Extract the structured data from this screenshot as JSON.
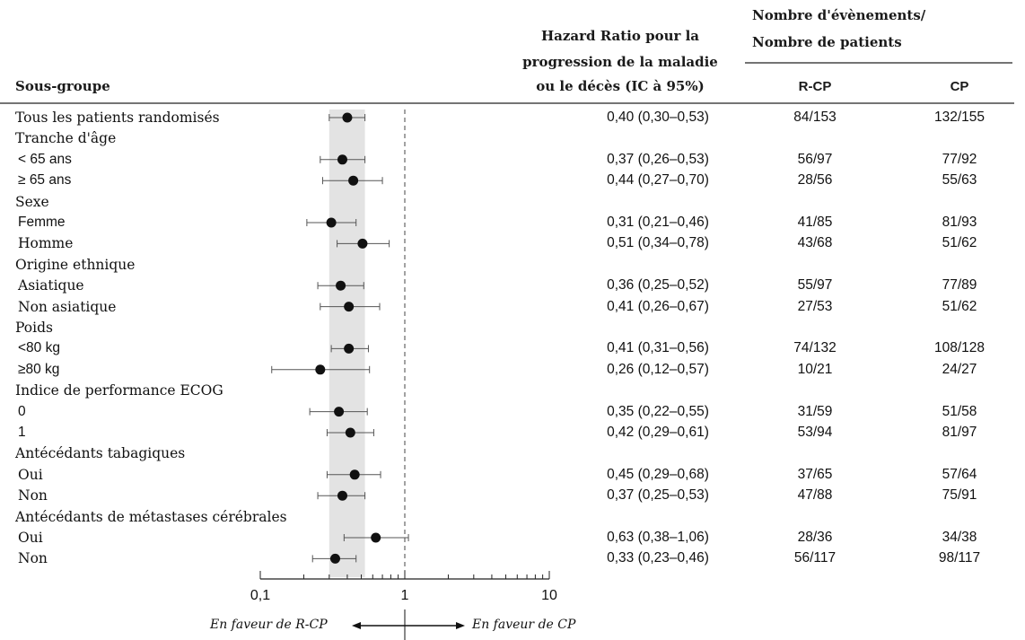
{
  "headers": {
    "subgroup": "Sous-groupe",
    "hr_line1": "Hazard Ratio pour la",
    "hr_line2": "progression de la maladie",
    "hr_line3": "ou le décès (IC à 95%)",
    "events_line1": "Nombre d'évènements/",
    "events_line2": "Nombre de patients",
    "col_rcp": "R-CP",
    "col_cp": "CP"
  },
  "footer": {
    "favor_left": "En faveur de R-CP",
    "favor_right": "En faveur de CP"
  },
  "chart_data": {
    "type": "forest",
    "x_scale": "log",
    "xlim": [
      0.1,
      10
    ],
    "x_ticks": [
      "0,1",
      "1",
      "10"
    ],
    "reference_line": 1,
    "shaded_band": [
      0.3,
      0.53
    ],
    "rows": [
      {
        "label": "Tous les patients randomisés",
        "kind": "subgroup",
        "indent": false,
        "hr": 0.4,
        "lo": 0.3,
        "hi": 0.53,
        "text": "0,40 (0,30–0,53)",
        "rcp": "84/153",
        "cp": "132/155"
      },
      {
        "label": "Tranche d'âge",
        "kind": "category"
      },
      {
        "label": "< 65 ans",
        "kind": "subgroup",
        "hr": 0.37,
        "lo": 0.26,
        "hi": 0.53,
        "text": "0,37 (0,26–0,53)",
        "rcp": "56/97",
        "cp": "77/92"
      },
      {
        "label": "≥ 65 ans",
        "kind": "subgroup",
        "hr": 0.44,
        "lo": 0.27,
        "hi": 0.7,
        "text": "0,44 (0,27–0,70)",
        "rcp": "28/56",
        "cp": "55/63"
      },
      {
        "label": "Sexe",
        "kind": "category"
      },
      {
        "label": "Femme",
        "kind": "subgroup",
        "hr": 0.31,
        "lo": 0.21,
        "hi": 0.46,
        "text": "0,31 (0,21–0,46)",
        "rcp": "41/85",
        "cp": "81/93"
      },
      {
        "label": "Homme",
        "kind": "subgroup",
        "hr": 0.51,
        "lo": 0.34,
        "hi": 0.78,
        "text": "0,51 (0,34–0,78)",
        "rcp": "43/68",
        "cp": "51/62"
      },
      {
        "label": "Origine ethnique",
        "kind": "category"
      },
      {
        "label": "Asiatique",
        "kind": "subgroup",
        "hr": 0.36,
        "lo": 0.25,
        "hi": 0.52,
        "text": "0,36 (0,25–0,52)",
        "rcp": "55/97",
        "cp": "77/89"
      },
      {
        "label": "Non asiatique",
        "kind": "subgroup",
        "hr": 0.41,
        "lo": 0.26,
        "hi": 0.67,
        "text": "0,41 (0,26–0,67)",
        "rcp": "27/53",
        "cp": "51/62"
      },
      {
        "label": "Poids",
        "kind": "category"
      },
      {
        "label": "<80 kg",
        "kind": "subgroup",
        "hr": 0.41,
        "lo": 0.31,
        "hi": 0.56,
        "text": "0,41 (0,31–0,56)",
        "rcp": "74/132",
        "cp": "108/128"
      },
      {
        "label": "≥80 kg",
        "kind": "subgroup",
        "hr": 0.26,
        "lo": 0.12,
        "hi": 0.57,
        "text": "0,26 (0,12–0,57)",
        "rcp": "10/21",
        "cp": "24/27"
      },
      {
        "label": "Indice de performance ECOG",
        "kind": "category"
      },
      {
        "label": "0",
        "kind": "subgroup",
        "hr": 0.35,
        "lo": 0.22,
        "hi": 0.55,
        "text": "0,35 (0,22–0,55)",
        "rcp": "31/59",
        "cp": "51/58"
      },
      {
        "label": "1",
        "kind": "subgroup",
        "hr": 0.42,
        "lo": 0.29,
        "hi": 0.61,
        "text": "0,42 (0,29–0,61)",
        "rcp": "53/94",
        "cp": "81/97"
      },
      {
        "label": "Antécédants tabagiques",
        "kind": "category"
      },
      {
        "label": "Oui",
        "kind": "subgroup",
        "hr": 0.45,
        "lo": 0.29,
        "hi": 0.68,
        "text": "0,45 (0,29–0,68)",
        "rcp": "37/65",
        "cp": "57/64"
      },
      {
        "label": "Non",
        "kind": "subgroup",
        "hr": 0.37,
        "lo": 0.25,
        "hi": 0.53,
        "text": "0,37 (0,25–0,53)",
        "rcp": "47/88",
        "cp": "75/91"
      },
      {
        "label": "Antécédants de métastases cérébrales",
        "kind": "category"
      },
      {
        "label": "Oui",
        "kind": "subgroup",
        "hr": 0.63,
        "lo": 0.38,
        "hi": 1.06,
        "text": "0,63 (0,38–1,06)",
        "rcp": "28/36",
        "cp": "34/38"
      },
      {
        "label": "Non",
        "kind": "subgroup",
        "hr": 0.33,
        "lo": 0.23,
        "hi": 0.46,
        "text": "0,33 (0,23–0,46)",
        "rcp": "56/117",
        "cp": "98/117"
      }
    ]
  }
}
